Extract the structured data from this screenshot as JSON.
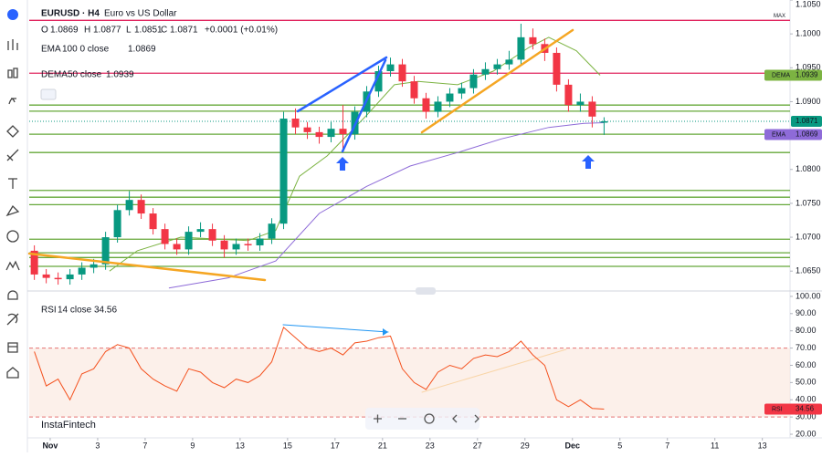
{
  "chart_data": {
    "type": "candlestick",
    "symbol": "EURUSD · H4",
    "description": "Euro vs US Dollar",
    "change": "+0.0001 (+0.01%)",
    "ohlc_labels": [
      "O",
      "H",
      "L",
      "C"
    ],
    "up_color": "#089981",
    "down_color": "#f23645",
    "candles": {
      "x": [
        -4,
        -1,
        2,
        5,
        8,
        11,
        14,
        17,
        20,
        23,
        26,
        29,
        32,
        35,
        38,
        41,
        44,
        47,
        50,
        53,
        56,
        59,
        62,
        65,
        68,
        71,
        74,
        77,
        80,
        83,
        86,
        89,
        92,
        95,
        98,
        101,
        104,
        107,
        110,
        113,
        116,
        119,
        122,
        125,
        128,
        131,
        134,
        137,
        140
      ],
      "open": [
        1.068,
        1.0645,
        1.064,
        1.0638,
        1.0645,
        1.0655,
        1.066,
        1.07,
        1.074,
        1.0755,
        1.0735,
        1.0712,
        1.069,
        1.0682,
        1.0708,
        1.0712,
        1.0695,
        1.0682,
        1.069,
        1.0688,
        1.0698,
        1.072,
        1.0875,
        1.0862,
        1.0855,
        1.0848,
        1.086,
        1.0852,
        1.0885,
        1.0915,
        1.0945,
        1.0955,
        1.093,
        1.0905,
        1.0885,
        1.09,
        1.0912,
        1.092,
        1.094,
        1.0948,
        1.0955,
        1.0962,
        1.0995,
        1.0985,
        1.0972,
        1.0925,
        1.0895,
        1.09,
        1.0869
      ],
      "high": [
        1.0688,
        1.0653,
        1.0648,
        1.0653,
        1.0663,
        1.0668,
        1.0708,
        1.0748,
        1.0768,
        1.0763,
        1.0743,
        1.072,
        1.0698,
        1.0716,
        1.0722,
        1.072,
        1.0703,
        1.0698,
        1.0698,
        1.0706,
        1.0728,
        1.0885,
        1.089,
        1.087,
        1.0863,
        1.087,
        1.0895,
        1.0893,
        1.0923,
        1.0953,
        1.0965,
        1.0963,
        1.0938,
        1.0913,
        1.0908,
        1.092,
        1.0928,
        1.0948,
        1.0958,
        1.0963,
        1.0975,
        1.1015,
        1.1008,
        1.0993,
        1.098,
        1.0933,
        1.0912,
        1.0908,
        1.0877
      ],
      "low": [
        1.0637,
        1.0632,
        1.063,
        1.063,
        1.0637,
        1.0647,
        1.0652,
        1.0692,
        1.0732,
        1.0727,
        1.0704,
        1.0682,
        1.0674,
        1.0674,
        1.07,
        1.0687,
        1.067,
        1.0674,
        1.068,
        1.068,
        1.069,
        1.0712,
        1.0852,
        1.0845,
        1.0838,
        1.084,
        1.0825,
        1.0844,
        1.0877,
        1.0907,
        1.0937,
        1.0922,
        1.0897,
        1.0875,
        1.0877,
        1.0892,
        1.0904,
        1.0912,
        1.0932,
        1.094,
        1.0947,
        1.0954,
        1.0977,
        1.096,
        1.0915,
        1.0885,
        1.0885,
        1.0862,
        1.0851
      ],
      "close": [
        1.0645,
        1.064,
        1.0638,
        1.0645,
        1.0655,
        1.066,
        1.07,
        1.074,
        1.0755,
        1.0735,
        1.0712,
        1.069,
        1.0682,
        1.0708,
        1.0712,
        1.0695,
        1.0682,
        1.069,
        1.0688,
        1.0698,
        1.072,
        1.0875,
        1.0862,
        1.0855,
        1.0848,
        1.086,
        1.0852,
        1.0885,
        1.0915,
        1.0945,
        1.0955,
        1.093,
        1.0905,
        1.0885,
        1.09,
        1.0912,
        1.092,
        1.094,
        1.0948,
        1.0955,
        1.0962,
        1.0995,
        1.0985,
        1.0972,
        1.0925,
        1.0895,
        1.09,
        1.0878,
        1.0871
      ]
    },
    "series": [
      {
        "name": "EMA",
        "params": "100 0 close",
        "color": "#8e6bd8",
        "x": [
          30,
          45,
          57,
          68,
          80,
          91,
          103,
          114,
          126,
          135,
          140
        ],
        "values": [
          1.0625,
          1.064,
          1.0665,
          1.0735,
          1.0775,
          1.0805,
          1.0825,
          1.0845,
          1.0862,
          1.0868,
          1.0869
        ]
      },
      {
        "name": "DEMA",
        "params": "50 close",
        "color": "#7cb342",
        "x": [
          15,
          22,
          33,
          50,
          57,
          63,
          70,
          80,
          87,
          93,
          103,
          112,
          121,
          126,
          133,
          139
        ],
        "values": [
          1.065,
          1.068,
          1.07,
          1.0695,
          1.071,
          1.079,
          1.082,
          1.088,
          1.0925,
          1.093,
          1.0925,
          1.0945,
          1.098,
          1.0995,
          1.0975,
          1.0939
        ]
      }
    ],
    "levels": [
      {
        "value": 1.102,
        "color": "#e0245e"
      },
      {
        "value": 1.0942,
        "color": "#e0245e"
      },
      {
        "value": 1.0895,
        "color": "#66a83a"
      },
      {
        "value": 1.0886,
        "color": "#66a83a"
      },
      {
        "value": 1.0852,
        "color": "#66a83a"
      },
      {
        "value": 1.0825,
        "color": "#66a83a"
      },
      {
        "value": 1.0769,
        "color": "#66a83a"
      },
      {
        "value": 1.0759,
        "color": "#66a83a"
      },
      {
        "value": 1.0748,
        "color": "#66a83a"
      },
      {
        "value": 1.0697,
        "color": "#66a83a"
      },
      {
        "value": 1.0677,
        "color": "#66a83a"
      },
      {
        "value": 1.067,
        "color": "#66a83a"
      },
      {
        "value": 1.0657,
        "color": "#66a83a"
      }
    ],
    "max_label": "MAX",
    "xlim": [
      -5.3,
      187
    ],
    "xticks": [
      {
        "value": 0,
        "label": "Nov"
      },
      {
        "value": 12,
        "label": "3"
      },
      {
        "value": 24,
        "label": "7"
      },
      {
        "value": 36,
        "label": "9"
      },
      {
        "value": 48,
        "label": "13"
      },
      {
        "value": 60,
        "label": "15"
      },
      {
        "value": 72,
        "label": "17"
      },
      {
        "value": 84,
        "label": "21"
      },
      {
        "value": 96,
        "label": "23"
      },
      {
        "value": 108,
        "label": "27"
      },
      {
        "value": 120,
        "label": "29"
      },
      {
        "value": 132,
        "label": "Dec"
      },
      {
        "value": 144,
        "label": "5"
      },
      {
        "value": 156,
        "label": "7"
      },
      {
        "value": 168,
        "label": "11"
      },
      {
        "value": 180,
        "label": "13"
      }
    ],
    "ylim": [
      1.0622,
      1.105
    ],
    "yticks": [
      {
        "value": 1.105,
        "label": "1.1050"
      },
      {
        "value": 1.1,
        "label": "1.1000"
      },
      {
        "value": 1.095,
        "label": "1.0950"
      },
      {
        "value": 1.09,
        "label": "1.0900"
      },
      {
        "value": 1.08,
        "label": "1.0800"
      },
      {
        "value": 1.075,
        "label": "1.0750"
      },
      {
        "value": 1.07,
        "label": "1.0700"
      },
      {
        "value": 1.065,
        "label": "1.0650"
      }
    ],
    "rsi": {
      "name": "RSI",
      "params": "14 close",
      "color": "#f4511e",
      "x": [
        -4,
        -1,
        2,
        5,
        8,
        11,
        14,
        17,
        20,
        23,
        26,
        29,
        32,
        35,
        38,
        41,
        44,
        47,
        50,
        53,
        56,
        59,
        62,
        65,
        68,
        71,
        74,
        77,
        80,
        83,
        86,
        89,
        92,
        95,
        98,
        101,
        104,
        107,
        110,
        113,
        116,
        119,
        122,
        125,
        128,
        131,
        134,
        137,
        140
      ],
      "values": [
        68,
        48,
        52,
        40,
        55,
        58,
        68,
        72,
        70,
        58,
        52,
        48,
        45,
        58,
        56,
        50,
        47,
        52,
        50,
        54,
        62,
        82,
        76,
        70,
        68,
        70,
        66,
        73,
        74,
        76,
        77,
        58,
        50,
        46,
        56,
        60,
        58,
        64,
        66,
        65,
        68,
        74,
        66,
        60,
        40,
        36,
        40,
        35,
        34.56
      ],
      "bands": [
        30,
        70
      ],
      "ylim": [
        17.9,
        102.6
      ],
      "yticks": [
        {
          "value": 100,
          "label": "100.00"
        },
        {
          "value": 90,
          "label": "90.00"
        },
        {
          "value": 80,
          "label": "80.00"
        },
        {
          "value": 70,
          "label": "70.00"
        },
        {
          "value": 60,
          "label": "60.00"
        },
        {
          "value": 50,
          "label": "50.00"
        },
        {
          "value": 40,
          "label": "40.00"
        },
        {
          "value": 30,
          "label": "30.00"
        },
        {
          "value": 20,
          "label": "20.00"
        }
      ]
    },
    "watermark": "InstaFintech"
  }
}
